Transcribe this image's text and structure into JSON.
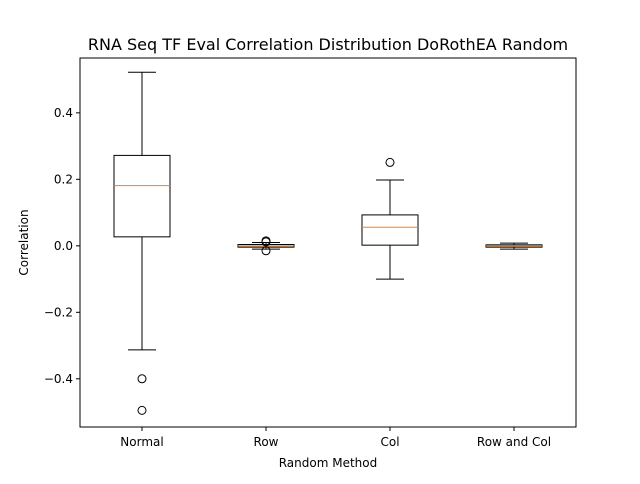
{
  "chart_data": {
    "type": "boxplot",
    "title": "RNA Seq TF Eval Correlation Distribution DoRothEA Random",
    "xlabel": "Random Method",
    "ylabel": "Correlation",
    "ylim": [
      -0.545,
      0.565
    ],
    "yticks": [
      -0.4,
      -0.2,
      0.0,
      0.2,
      0.4
    ],
    "ytick_labels": [
      "−0.4",
      "−0.2",
      "0.0",
      "0.2",
      "0.4"
    ],
    "categories": [
      "Normal",
      "Row",
      "Col",
      "Row and Col"
    ],
    "boxes": [
      {
        "name": "Normal",
        "whisker_low": -0.313,
        "q1": 0.027,
        "median": 0.181,
        "q3": 0.272,
        "whisker_high": 0.522,
        "outliers": [
          -0.4,
          -0.495
        ]
      },
      {
        "name": "Row",
        "whisker_low": -0.01,
        "q1": -0.004,
        "median": 0.0,
        "q3": 0.004,
        "whisker_high": 0.01,
        "outliers": [
          0.015,
          0.012,
          -0.015
        ]
      },
      {
        "name": "Col",
        "whisker_low": -0.1,
        "q1": 0.002,
        "median": 0.056,
        "q3": 0.093,
        "whisker_high": 0.198,
        "outliers": [
          0.251
        ]
      },
      {
        "name": "Row and Col",
        "whisker_low": -0.01,
        "q1": -0.004,
        "median": 0.0,
        "q3": 0.003,
        "whisker_high": 0.008,
        "outliers": []
      }
    ],
    "colors": {
      "median": "#ff7f0e",
      "box": "#000000",
      "background": "#ffffff"
    }
  }
}
